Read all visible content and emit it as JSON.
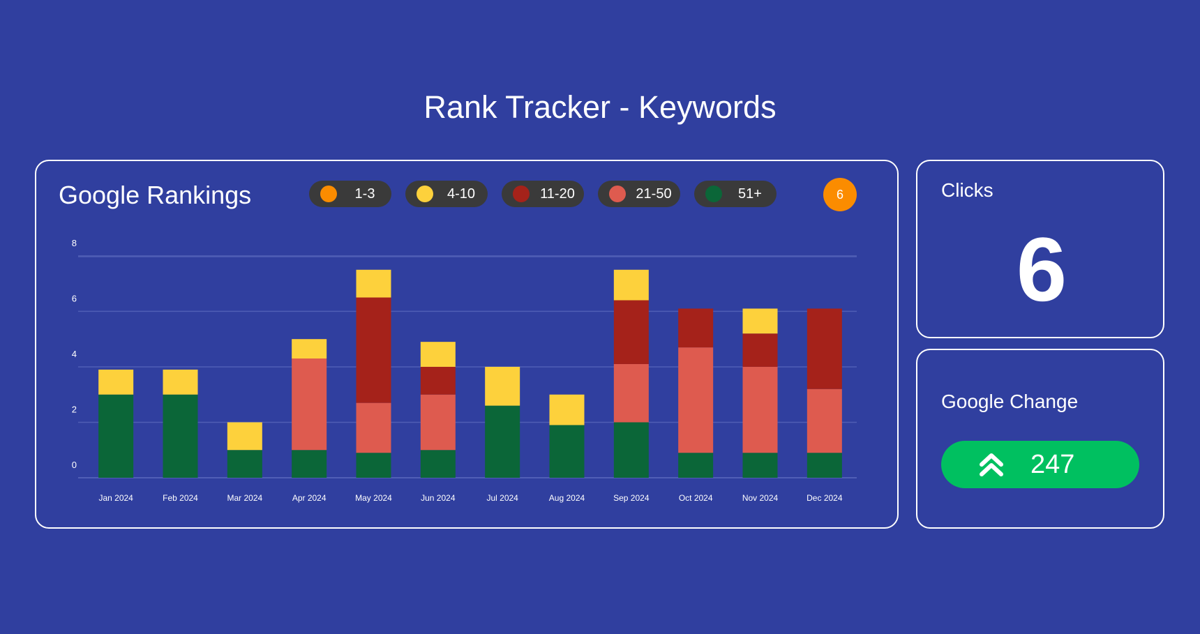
{
  "page": {
    "title": "Rank Tracker - Keywords"
  },
  "rankings_card": {
    "title": "Google Rankings",
    "badge_count": "6",
    "legend": [
      {
        "label": "1-3",
        "color": "#fb8c00"
      },
      {
        "label": "4-10",
        "color": "#fdd13c"
      },
      {
        "label": "11-20",
        "color": "#a5221a"
      },
      {
        "label": "21-50",
        "color": "#de5b4f"
      },
      {
        "label": "51+",
        "color": "#0b6638"
      }
    ]
  },
  "clicks_card": {
    "label": "Clicks",
    "value": "6"
  },
  "change_card": {
    "label": "Google Change",
    "value": "247",
    "icon": "double-chevron-up-icon",
    "color": "#00c060"
  },
  "chart_data": {
    "type": "bar",
    "stacked": true,
    "categories": [
      "Jan 2024",
      "Feb 2024",
      "Mar 2024",
      "Apr 2024",
      "May 2024",
      "Jun 2024",
      "Jul 2024",
      "Aug 2024",
      "Sep 2024",
      "Oct 2024",
      "Nov 2024",
      "Dec 2024"
    ],
    "series": [
      {
        "name": "51+",
        "color": "#0b6638",
        "values": [
          3,
          3,
          1,
          1,
          0.9,
          1,
          2.6,
          1.9,
          2,
          0.9,
          0.9,
          0.9
        ]
      },
      {
        "name": "21-50",
        "color": "#de5b4f",
        "values": [
          0,
          0,
          0,
          3.3,
          1.8,
          2,
          0,
          0,
          2.1,
          3.8,
          3.1,
          2.3
        ]
      },
      {
        "name": "11-20",
        "color": "#a5221a",
        "values": [
          0,
          0,
          0,
          0,
          3.8,
          1,
          0,
          0,
          2.3,
          1.4,
          1.2,
          2.9
        ]
      },
      {
        "name": "4-10",
        "color": "#fdd13c",
        "values": [
          0.9,
          0.9,
          1,
          0.7,
          1,
          0.9,
          1.4,
          1.1,
          1.1,
          0,
          0.9,
          0
        ]
      },
      {
        "name": "1-3",
        "color": "#fb8c00",
        "values": [
          0,
          0,
          0,
          0,
          0,
          0,
          0,
          0,
          0,
          0,
          0,
          0
        ]
      }
    ],
    "yticks": [
      0,
      2,
      4,
      6,
      8
    ],
    "ylim": [
      0,
      8.5
    ],
    "grid": true,
    "title": "Google Rankings",
    "xlabel": "",
    "ylabel": ""
  }
}
